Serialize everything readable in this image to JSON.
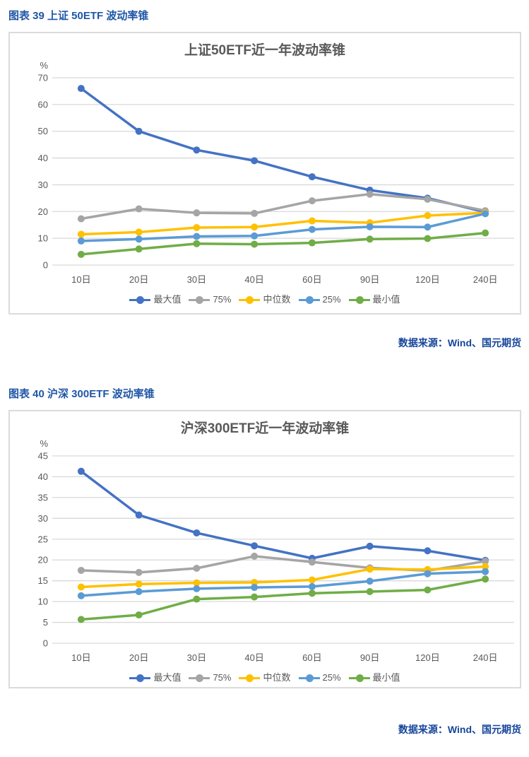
{
  "figures": [
    {
      "caption": "图表 39  上证 50ETF 波动率锥",
      "source_note": "数据来源：Wind、国元期货"
    },
    {
      "caption": "图表 40  沪深 300ETF 波动率锥",
      "source_note": "数据来源：Wind、国元期货"
    }
  ],
  "colors": {
    "caption_blue": "#1F56A6",
    "source_blue": "#16459B",
    "title_gray": "#595959",
    "axis_text": "#595959",
    "gridline": "#D9D9D9",
    "panel_border": "#DBDBDB"
  },
  "chart_data": [
    {
      "type": "line",
      "title": "上证50ETF近一年波动率锥",
      "xlabel": "",
      "ylabel": "%",
      "ylim": [
        0,
        70
      ],
      "ytick": 10,
      "grid": true,
      "legend_position": "bottom",
      "categories": [
        "10日",
        "20日",
        "30日",
        "40日",
        "60日",
        "90日",
        "120日",
        "240日"
      ],
      "series": [
        {
          "name": "最大值",
          "color": "#4472C4",
          "values": [
            66,
            50,
            43,
            39,
            33,
            28,
            25,
            19.8
          ]
        },
        {
          "name": "75%",
          "color": "#A5A5A5",
          "values": [
            17.3,
            21,
            19.5,
            19.3,
            24,
            26.5,
            24.6,
            20.3
          ]
        },
        {
          "name": "中位数",
          "color": "#FFC000",
          "values": [
            11.5,
            12.3,
            14,
            14.2,
            16.5,
            15.8,
            18.5,
            19.5
          ]
        },
        {
          "name": "25%",
          "color": "#5B9BD5",
          "values": [
            9,
            9.7,
            10.7,
            10.9,
            13.3,
            14.3,
            14.2,
            19.2
          ]
        },
        {
          "name": "最小值",
          "color": "#70AD47",
          "values": [
            4,
            6,
            8,
            7.8,
            8.3,
            9.7,
            9.9,
            12
          ]
        }
      ]
    },
    {
      "type": "line",
      "title": "沪深300ETF近一年波动率锥",
      "xlabel": "",
      "ylabel": "%",
      "ylim": [
        0,
        45
      ],
      "ytick": 5,
      "grid": true,
      "legend_position": "bottom",
      "categories": [
        "10日",
        "20日",
        "30日",
        "40日",
        "60日",
        "90日",
        "120日",
        "240日"
      ],
      "series": [
        {
          "name": "最大值",
          "color": "#4472C4",
          "values": [
            41.3,
            30.8,
            26.5,
            23.4,
            20.4,
            23.3,
            22.2,
            19.9
          ]
        },
        {
          "name": "75%",
          "color": "#A5A5A5",
          "values": [
            17.5,
            17,
            18,
            20.9,
            19.5,
            18.1,
            17.4,
            19.7
          ]
        },
        {
          "name": "中位数",
          "color": "#FFC000",
          "values": [
            13.5,
            14.2,
            14.5,
            14.6,
            15.2,
            17.8,
            17.7,
            18.4
          ]
        },
        {
          "name": "25%",
          "color": "#5B9BD5",
          "values": [
            11.4,
            12.4,
            13.1,
            13.4,
            13.6,
            14.9,
            16.7,
            17.2
          ]
        },
        {
          "name": "最小值",
          "color": "#70AD47",
          "values": [
            5.7,
            6.8,
            10.6,
            11.1,
            12,
            12.4,
            12.8,
            15.4
          ]
        }
      ]
    }
  ]
}
